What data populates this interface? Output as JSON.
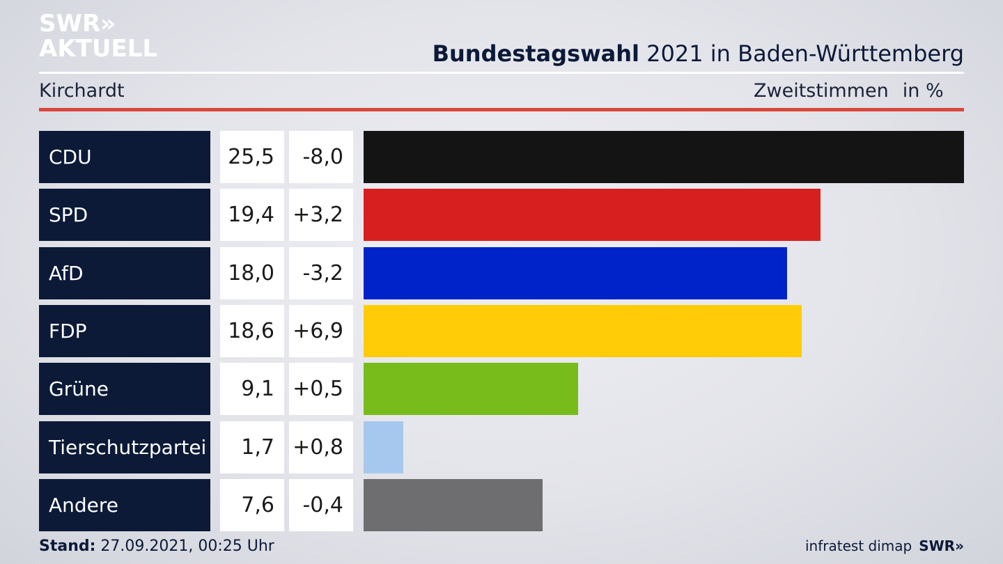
{
  "brand": {
    "line1": "SWR»",
    "line2": "AKTUELL"
  },
  "header": {
    "title_bold": "Bundestagswahl",
    "title_rest": " 2021 in Baden-Württemberg",
    "region": "Kirchardt",
    "measure": "Zweitstimmen",
    "unit": "in %"
  },
  "footer": {
    "stand_label": "Stand:",
    "stand_value": " 27.09.2021, 00:25 Uhr",
    "source": "infratest dimap",
    "brand_small": "SWR»"
  },
  "chart_data": {
    "type": "bar",
    "orientation": "horizontal",
    "title": "Bundestagswahl 2021 in Baden-Württemberg",
    "categories": [
      "CDU",
      "SPD",
      "AfD",
      "FDP",
      "Grüne",
      "Tierschutzpartei",
      "Andere"
    ],
    "values": [
      25.5,
      19.4,
      18.0,
      18.6,
      9.1,
      1.7,
      7.6
    ],
    "value_labels": [
      "25,5",
      "19,4",
      "18,0",
      "18,6",
      "9,1",
      "1,7",
      "7,6"
    ],
    "diffs": [
      -8.0,
      3.2,
      -3.2,
      6.9,
      0.5,
      0.8,
      -0.4
    ],
    "diff_labels": [
      "-8,0",
      "+3,2",
      "-3,2",
      "+6,9",
      "+0,5",
      "+0,8",
      "-0,4"
    ],
    "colors": [
      "#141414",
      "#d81f1f",
      "#0022c9",
      "#ffcc07",
      "#78bc1b",
      "#a7c8ee",
      "#6e6e70"
    ],
    "xlim": [
      0,
      25.5
    ],
    "grid": false,
    "legend": "none"
  }
}
